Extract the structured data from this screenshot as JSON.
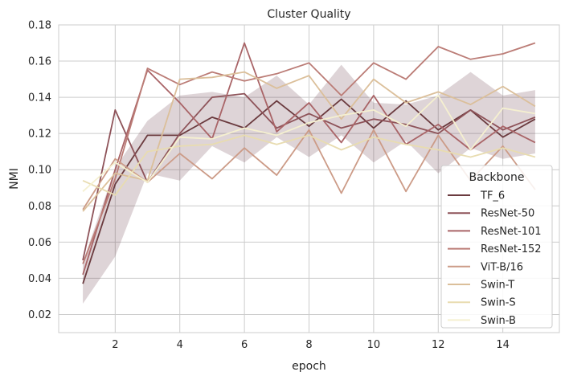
{
  "chart_data": {
    "type": "line",
    "title": "Cluster Quality",
    "xlabel": "epoch",
    "ylabel": "NMI",
    "xlim": [
      0.25,
      15.75
    ],
    "ylim": [
      0.01,
      0.18
    ],
    "xticks": [
      2,
      4,
      6,
      8,
      10,
      12,
      14
    ],
    "yticks": [
      0.02,
      0.04,
      0.06,
      0.08,
      0.1,
      0.12,
      0.14,
      0.16,
      0.18
    ],
    "ytick_labels": [
      "0.02",
      "0.04",
      "0.06",
      "0.08",
      "0.10",
      "0.12",
      "0.14",
      "0.16",
      "0.18"
    ],
    "grid": true,
    "legend": {
      "title": "Backbone",
      "placement": "lower-right"
    },
    "x": [
      1,
      2,
      3,
      4,
      5,
      6,
      7,
      8,
      9,
      10,
      11,
      12,
      13,
      14,
      15
    ],
    "band": {
      "color": "#5a2a35",
      "upper": [
        0.049,
        0.101,
        0.127,
        0.141,
        0.143,
        0.14,
        0.152,
        0.136,
        0.158,
        0.137,
        0.136,
        0.141,
        0.154,
        0.141,
        0.144
      ],
      "lower": [
        0.026,
        0.052,
        0.098,
        0.094,
        0.113,
        0.104,
        0.118,
        0.107,
        0.119,
        0.104,
        0.116,
        0.098,
        0.112,
        0.106,
        0.109
      ]
    },
    "series": [
      {
        "name": "TF_6",
        "color": "#6b3b3f",
        "values": [
          0.037,
          0.092,
          0.119,
          0.119,
          0.129,
          0.123,
          0.138,
          0.124,
          0.139,
          0.123,
          0.138,
          0.122,
          0.133,
          0.118,
          0.128
        ]
      },
      {
        "name": "ResNet-50",
        "color": "#8e5359",
        "values": [
          0.05,
          0.133,
          0.093,
          0.12,
          0.14,
          0.142,
          0.123,
          0.131,
          0.123,
          0.128,
          0.125,
          0.12,
          0.133,
          0.122,
          0.129
        ]
      },
      {
        "name": "ResNet-101",
        "color": "#a96467",
        "values": [
          0.042,
          0.1,
          0.155,
          0.137,
          0.117,
          0.17,
          0.121,
          0.137,
          0.115,
          0.141,
          0.114,
          0.125,
          0.111,
          0.124,
          0.115
        ]
      },
      {
        "name": "ResNet-152",
        "color": "#bb7c76",
        "values": [
          0.048,
          0.095,
          0.156,
          0.147,
          0.154,
          0.149,
          0.153,
          0.159,
          0.141,
          0.159,
          0.15,
          0.168,
          0.161,
          0.164,
          0.17
        ]
      },
      {
        "name": "ViT-B/16",
        "color": "#cc9b87",
        "values": [
          0.078,
          0.106,
          0.093,
          0.109,
          0.095,
          0.112,
          0.097,
          0.122,
          0.087,
          0.122,
          0.088,
          0.119,
          0.094,
          0.113,
          0.089
        ]
      },
      {
        "name": "Swin-T",
        "color": "#dbbf9a",
        "values": [
          0.077,
          0.098,
          0.094,
          0.15,
          0.151,
          0.154,
          0.145,
          0.152,
          0.128,
          0.15,
          0.137,
          0.143,
          0.136,
          0.146,
          0.135
        ]
      },
      {
        "name": "Swin-S",
        "color": "#e8dcb0",
        "values": [
          0.094,
          0.086,
          0.11,
          0.113,
          0.114,
          0.119,
          0.114,
          0.119,
          0.111,
          0.118,
          0.114,
          0.111,
          0.107,
          0.112,
          0.107
        ]
      },
      {
        "name": "Swin-B",
        "color": "#f5f0d0",
        "values": [
          0.088,
          0.104,
          0.093,
          0.118,
          0.117,
          0.123,
          0.119,
          0.126,
          0.13,
          0.133,
          0.124,
          0.141,
          0.111,
          0.134,
          0.131
        ]
      }
    ]
  }
}
